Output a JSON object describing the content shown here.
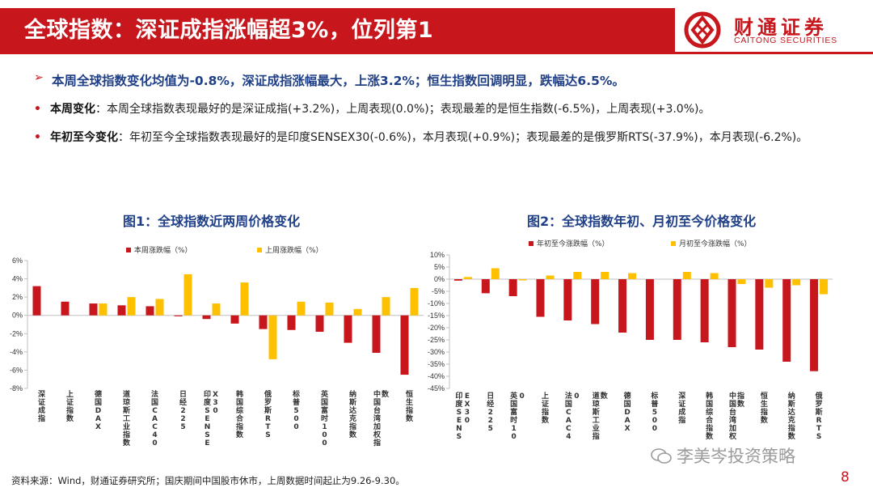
{
  "header": {
    "title": "全球指数：深证成指涨幅超3%，位列第1",
    "logo_cn": "财通证券",
    "logo_en": "CAITONG SECURITIES",
    "accent_color": "#c8161d"
  },
  "headline": {
    "arrow": "➢",
    "text": "本周全球指数变化均值为-0.8%，深证成指涨幅最大，上涨3.2%；恒生指数回调明显，跌幅达6.5%。"
  },
  "bullets": [
    {
      "label": "本周变化",
      "text": "：本周全球指数表现最好的是深证成指(+3.2%)，上周表现(0.0%)；表现最差的是恒生指数(-6.5%)，上周表现(+3.0%)。"
    },
    {
      "label": "年初至今变化",
      "text": "：年初至今全球指数表现最好的是印度SENSEX30(-0.6%)，本月表现(+0.9%)；表现最差的是俄罗斯RTS(-37.9%)，本月表现(-6.2%)。"
    }
  ],
  "figures": {
    "fig1_title": "图1：全球指数近两周价格变化",
    "fig2_title": "图2：全球指数年初、月初至今价格变化"
  },
  "chart_data": [
    {
      "type": "bar",
      "title": "图1：全球指数近两周价格变化",
      "categories": [
        "深证成指",
        "上证指数",
        "德国DAX",
        "道琼斯工业指数",
        "法国CAC40",
        "日经225",
        "印度SENSEX30",
        "韩国综合指数",
        "俄罗斯RTS",
        "标普500",
        "英国富时100",
        "纳斯达克指数",
        "中国台湾加权指数",
        "恒生指数"
      ],
      "series": [
        {
          "name": "本周涨跌幅（%）",
          "color": "#c8161d",
          "values": [
            3.2,
            1.5,
            1.3,
            1.1,
            1.0,
            -0.1,
            -0.4,
            -0.9,
            -1.5,
            -1.6,
            -1.8,
            -3.0,
            -4.1,
            -6.5
          ]
        },
        {
          "name": "上周涨跌幅（%）",
          "color": "#ffc000",
          "values": [
            0.0,
            0.0,
            1.3,
            2.0,
            1.8,
            4.5,
            1.3,
            3.6,
            -4.8,
            1.5,
            1.4,
            0.7,
            2.0,
            3.0
          ]
        }
      ],
      "ylim": [
        -8,
        6
      ],
      "yticks": [
        "-8%",
        "-6%",
        "-4%",
        "-2%",
        "0%",
        "2%",
        "4%",
        "6%"
      ],
      "legend": "top"
    },
    {
      "type": "bar",
      "title": "图2：全球指数年初、月初至今价格变化",
      "categories": [
        "印度SENSEX30",
        "日经225",
        "英国富时100",
        "上证指数",
        "法国CAC40",
        "道琼斯工业指数",
        "德国DAX",
        "标普500",
        "深证成指",
        "韩国综合指数",
        "中国台湾加权指数",
        "恒生指数",
        "纳斯达克指数",
        "俄罗斯RTS"
      ],
      "series": [
        {
          "name": "年初至今涨跌幅（%）",
          "color": "#c8161d",
          "values": [
            -0.6,
            -5.8,
            -7.0,
            -15.5,
            -17.0,
            -18.5,
            -22.0,
            -25.0,
            -25.0,
            -26.0,
            -28.0,
            -29.0,
            -34.0,
            -37.9
          ]
        },
        {
          "name": "月初至今涨跌幅（%）",
          "color": "#ffc000",
          "values": [
            0.9,
            4.5,
            -0.5,
            1.5,
            3.0,
            3.0,
            2.5,
            0.0,
            3.0,
            2.5,
            -2.0,
            -3.5,
            -2.5,
            -6.2
          ]
        }
      ],
      "ylim": [
        -45,
        10
      ],
      "yticks": [
        "-45%",
        "-40%",
        "-35%",
        "-30%",
        "-25%",
        "-20%",
        "-15%",
        "-10%",
        "-5%",
        "0%",
        "5%",
        "10%"
      ],
      "legend": "top"
    }
  ],
  "footer": {
    "source": "资料来源：Wind，财通证券研究所；国庆期间中国股市休市，上周数据时间起止为9.26-9.30。",
    "watermark": "李美岑投资策略",
    "page_number": "8"
  }
}
